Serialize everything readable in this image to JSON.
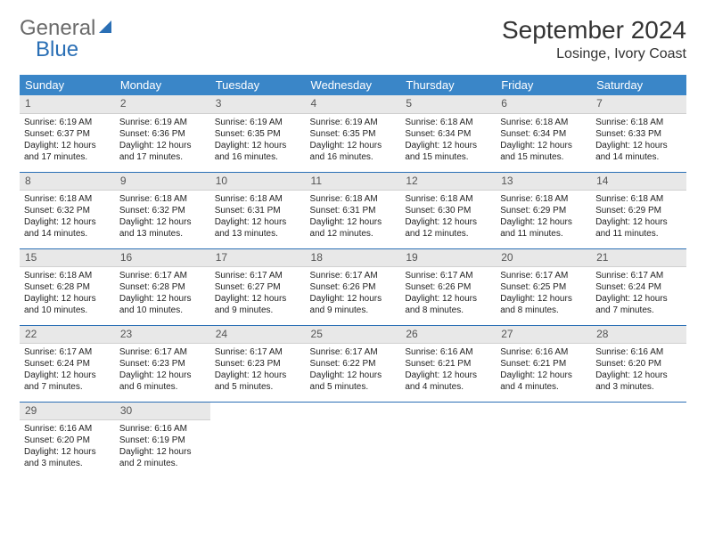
{
  "logo": {
    "text1": "General",
    "text2": "Blue"
  },
  "title": "September 2024",
  "location": "Losinge, Ivory Coast",
  "colors": {
    "header_bg": "#3a86c8",
    "header_text": "#ffffff",
    "daynum_bg": "#e8e8e8",
    "border": "#2a6fb5",
    "logo_gray": "#6b6b6b",
    "logo_blue": "#2a6fb5",
    "page_bg": "#ffffff"
  },
  "weekdays": [
    "Sunday",
    "Monday",
    "Tuesday",
    "Wednesday",
    "Thursday",
    "Friday",
    "Saturday"
  ],
  "days": [
    {
      "n": "1",
      "sr": "Sunrise: 6:19 AM",
      "ss": "Sunset: 6:37 PM",
      "dl1": "Daylight: 12 hours",
      "dl2": "and 17 minutes."
    },
    {
      "n": "2",
      "sr": "Sunrise: 6:19 AM",
      "ss": "Sunset: 6:36 PM",
      "dl1": "Daylight: 12 hours",
      "dl2": "and 17 minutes."
    },
    {
      "n": "3",
      "sr": "Sunrise: 6:19 AM",
      "ss": "Sunset: 6:35 PM",
      "dl1": "Daylight: 12 hours",
      "dl2": "and 16 minutes."
    },
    {
      "n": "4",
      "sr": "Sunrise: 6:19 AM",
      "ss": "Sunset: 6:35 PM",
      "dl1": "Daylight: 12 hours",
      "dl2": "and 16 minutes."
    },
    {
      "n": "5",
      "sr": "Sunrise: 6:18 AM",
      "ss": "Sunset: 6:34 PM",
      "dl1": "Daylight: 12 hours",
      "dl2": "and 15 minutes."
    },
    {
      "n": "6",
      "sr": "Sunrise: 6:18 AM",
      "ss": "Sunset: 6:34 PM",
      "dl1": "Daylight: 12 hours",
      "dl2": "and 15 minutes."
    },
    {
      "n": "7",
      "sr": "Sunrise: 6:18 AM",
      "ss": "Sunset: 6:33 PM",
      "dl1": "Daylight: 12 hours",
      "dl2": "and 14 minutes."
    },
    {
      "n": "8",
      "sr": "Sunrise: 6:18 AM",
      "ss": "Sunset: 6:32 PM",
      "dl1": "Daylight: 12 hours",
      "dl2": "and 14 minutes."
    },
    {
      "n": "9",
      "sr": "Sunrise: 6:18 AM",
      "ss": "Sunset: 6:32 PM",
      "dl1": "Daylight: 12 hours",
      "dl2": "and 13 minutes."
    },
    {
      "n": "10",
      "sr": "Sunrise: 6:18 AM",
      "ss": "Sunset: 6:31 PM",
      "dl1": "Daylight: 12 hours",
      "dl2": "and 13 minutes."
    },
    {
      "n": "11",
      "sr": "Sunrise: 6:18 AM",
      "ss": "Sunset: 6:31 PM",
      "dl1": "Daylight: 12 hours",
      "dl2": "and 12 minutes."
    },
    {
      "n": "12",
      "sr": "Sunrise: 6:18 AM",
      "ss": "Sunset: 6:30 PM",
      "dl1": "Daylight: 12 hours",
      "dl2": "and 12 minutes."
    },
    {
      "n": "13",
      "sr": "Sunrise: 6:18 AM",
      "ss": "Sunset: 6:29 PM",
      "dl1": "Daylight: 12 hours",
      "dl2": "and 11 minutes."
    },
    {
      "n": "14",
      "sr": "Sunrise: 6:18 AM",
      "ss": "Sunset: 6:29 PM",
      "dl1": "Daylight: 12 hours",
      "dl2": "and 11 minutes."
    },
    {
      "n": "15",
      "sr": "Sunrise: 6:18 AM",
      "ss": "Sunset: 6:28 PM",
      "dl1": "Daylight: 12 hours",
      "dl2": "and 10 minutes."
    },
    {
      "n": "16",
      "sr": "Sunrise: 6:17 AM",
      "ss": "Sunset: 6:28 PM",
      "dl1": "Daylight: 12 hours",
      "dl2": "and 10 minutes."
    },
    {
      "n": "17",
      "sr": "Sunrise: 6:17 AM",
      "ss": "Sunset: 6:27 PM",
      "dl1": "Daylight: 12 hours",
      "dl2": "and 9 minutes."
    },
    {
      "n": "18",
      "sr": "Sunrise: 6:17 AM",
      "ss": "Sunset: 6:26 PM",
      "dl1": "Daylight: 12 hours",
      "dl2": "and 9 minutes."
    },
    {
      "n": "19",
      "sr": "Sunrise: 6:17 AM",
      "ss": "Sunset: 6:26 PM",
      "dl1": "Daylight: 12 hours",
      "dl2": "and 8 minutes."
    },
    {
      "n": "20",
      "sr": "Sunrise: 6:17 AM",
      "ss": "Sunset: 6:25 PM",
      "dl1": "Daylight: 12 hours",
      "dl2": "and 8 minutes."
    },
    {
      "n": "21",
      "sr": "Sunrise: 6:17 AM",
      "ss": "Sunset: 6:24 PM",
      "dl1": "Daylight: 12 hours",
      "dl2": "and 7 minutes."
    },
    {
      "n": "22",
      "sr": "Sunrise: 6:17 AM",
      "ss": "Sunset: 6:24 PM",
      "dl1": "Daylight: 12 hours",
      "dl2": "and 7 minutes."
    },
    {
      "n": "23",
      "sr": "Sunrise: 6:17 AM",
      "ss": "Sunset: 6:23 PM",
      "dl1": "Daylight: 12 hours",
      "dl2": "and 6 minutes."
    },
    {
      "n": "24",
      "sr": "Sunrise: 6:17 AM",
      "ss": "Sunset: 6:23 PM",
      "dl1": "Daylight: 12 hours",
      "dl2": "and 5 minutes."
    },
    {
      "n": "25",
      "sr": "Sunrise: 6:17 AM",
      "ss": "Sunset: 6:22 PM",
      "dl1": "Daylight: 12 hours",
      "dl2": "and 5 minutes."
    },
    {
      "n": "26",
      "sr": "Sunrise: 6:16 AM",
      "ss": "Sunset: 6:21 PM",
      "dl1": "Daylight: 12 hours",
      "dl2": "and 4 minutes."
    },
    {
      "n": "27",
      "sr": "Sunrise: 6:16 AM",
      "ss": "Sunset: 6:21 PM",
      "dl1": "Daylight: 12 hours",
      "dl2": "and 4 minutes."
    },
    {
      "n": "28",
      "sr": "Sunrise: 6:16 AM",
      "ss": "Sunset: 6:20 PM",
      "dl1": "Daylight: 12 hours",
      "dl2": "and 3 minutes."
    },
    {
      "n": "29",
      "sr": "Sunrise: 6:16 AM",
      "ss": "Sunset: 6:20 PM",
      "dl1": "Daylight: 12 hours",
      "dl2": "and 3 minutes."
    },
    {
      "n": "30",
      "sr": "Sunrise: 6:16 AM",
      "ss": "Sunset: 6:19 PM",
      "dl1": "Daylight: 12 hours",
      "dl2": "and 2 minutes."
    }
  ]
}
